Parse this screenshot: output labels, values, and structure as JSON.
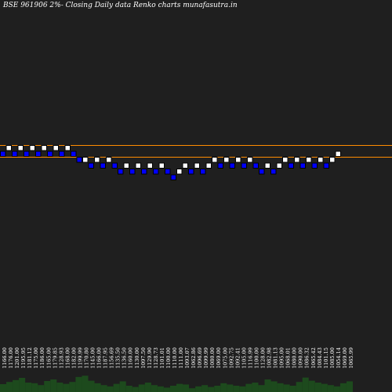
{
  "chart_data": {
    "type": "renko",
    "title": "BSE 961906  2%-  Closing Daily data  Renko  charts munafasutra.in",
    "colors": {
      "background": "#1f1f1f",
      "up_brick": "#ffffff",
      "down_brick": "#0000ff",
      "reference_line": "#ff8c00",
      "volume": "#1d4a1d",
      "text": "#ffffff"
    },
    "reference_lines": [
      1190,
      1140
    ],
    "bricks": [
      {
        "dir": "down",
        "level": 1165
      },
      {
        "dir": "up",
        "level": 1190
      },
      {
        "dir": "down",
        "level": 1165
      },
      {
        "dir": "up",
        "level": 1190
      },
      {
        "dir": "down",
        "level": 1165
      },
      {
        "dir": "up",
        "level": 1190
      },
      {
        "dir": "down",
        "level": 1165
      },
      {
        "dir": "up",
        "level": 1190
      },
      {
        "dir": "down",
        "level": 1165
      },
      {
        "dir": "up",
        "level": 1190
      },
      {
        "dir": "down",
        "level": 1165
      },
      {
        "dir": "up",
        "level": 1190
      },
      {
        "dir": "down",
        "level": 1165
      },
      {
        "dir": "down",
        "level": 1140
      },
      {
        "dir": "up",
        "level": 1140
      },
      {
        "dir": "down",
        "level": 1115
      },
      {
        "dir": "up",
        "level": 1140
      },
      {
        "dir": "down",
        "level": 1115
      },
      {
        "dir": "up",
        "level": 1140
      },
      {
        "dir": "down",
        "level": 1115
      },
      {
        "dir": "down",
        "level": 1090
      },
      {
        "dir": "up",
        "level": 1115
      },
      {
        "dir": "down",
        "level": 1090
      },
      {
        "dir": "up",
        "level": 1115
      },
      {
        "dir": "down",
        "level": 1090
      },
      {
        "dir": "up",
        "level": 1115
      },
      {
        "dir": "down",
        "level": 1090
      },
      {
        "dir": "up",
        "level": 1115
      },
      {
        "dir": "down",
        "level": 1090
      },
      {
        "dir": "down",
        "level": 1065
      },
      {
        "dir": "up",
        "level": 1090
      },
      {
        "dir": "up",
        "level": 1115
      },
      {
        "dir": "down",
        "level": 1090
      },
      {
        "dir": "up",
        "level": 1115
      },
      {
        "dir": "down",
        "level": 1090
      },
      {
        "dir": "up",
        "level": 1115
      },
      {
        "dir": "up",
        "level": 1140
      },
      {
        "dir": "down",
        "level": 1115
      },
      {
        "dir": "up",
        "level": 1140
      },
      {
        "dir": "down",
        "level": 1115
      },
      {
        "dir": "up",
        "level": 1140
      },
      {
        "dir": "down",
        "level": 1115
      },
      {
        "dir": "up",
        "level": 1140
      },
      {
        "dir": "down",
        "level": 1115
      },
      {
        "dir": "down",
        "level": 1090
      },
      {
        "dir": "up",
        "level": 1115
      },
      {
        "dir": "down",
        "level": 1090
      },
      {
        "dir": "up",
        "level": 1115
      },
      {
        "dir": "up",
        "level": 1140
      },
      {
        "dir": "down",
        "level": 1115
      },
      {
        "dir": "up",
        "level": 1140
      },
      {
        "dir": "down",
        "level": 1115
      },
      {
        "dir": "up",
        "level": 1140
      },
      {
        "dir": "down",
        "level": 1115
      },
      {
        "dir": "up",
        "level": 1140
      },
      {
        "dir": "down",
        "level": 1115
      },
      {
        "dir": "up",
        "level": 1140
      },
      {
        "dir": "up",
        "level": 1165
      }
    ],
    "x_tick_labels": [
      "1166.00",
      "1176.00",
      "1201.00",
      "1195.95",
      "1181.12",
      "1175.00",
      "1186.00",
      "1165.00",
      "1179.85",
      "1128.93",
      "1168.00",
      "1182.00",
      "1199.99",
      "1170.80",
      "1145.00",
      "1166.00",
      "1187.95",
      "1156.69",
      "1135.50",
      "1136.50",
      "1160.00",
      "1130.00",
      "1097.50",
      "1129.90",
      "1128.73",
      "1101.01",
      "1100.00",
      "1110.00",
      "1111.00",
      "1093.07",
      "1062.86",
      "1096.69",
      "1099.99",
      "1080.00",
      "1069.00",
      "1075.00",
      "1092.75",
      "1092.41",
      "1105.00",
      "1116.99",
      "1100.00",
      "1128.00",
      "1082.98",
      "1081.13",
      "1095.00",
      "1068.01",
      "1080.00",
      "1090.00",
      "1086.32",
      "1065.42",
      "1084.43",
      "1101.15",
      "1085.00",
      "1054.14",
      "1069.00",
      "1065.99"
    ],
    "volume": [
      0.25,
      0.32,
      0.38,
      0.45,
      0.3,
      0.28,
      0.22,
      0.35,
      0.4,
      0.3,
      0.26,
      0.32,
      0.48,
      0.52,
      0.36,
      0.28,
      0.22,
      0.18,
      0.26,
      0.34,
      0.2,
      0.16,
      0.24,
      0.3,
      0.22,
      0.18,
      0.14,
      0.2,
      0.26,
      0.24,
      0.12,
      0.18,
      0.22,
      0.16,
      0.2,
      0.28,
      0.24,
      0.2,
      0.18,
      0.26,
      0.3,
      0.22,
      0.4,
      0.34,
      0.28,
      0.24,
      0.2,
      0.32,
      0.46,
      0.36,
      0.3,
      0.26,
      0.22,
      0.18,
      0.28,
      0.34
    ]
  }
}
